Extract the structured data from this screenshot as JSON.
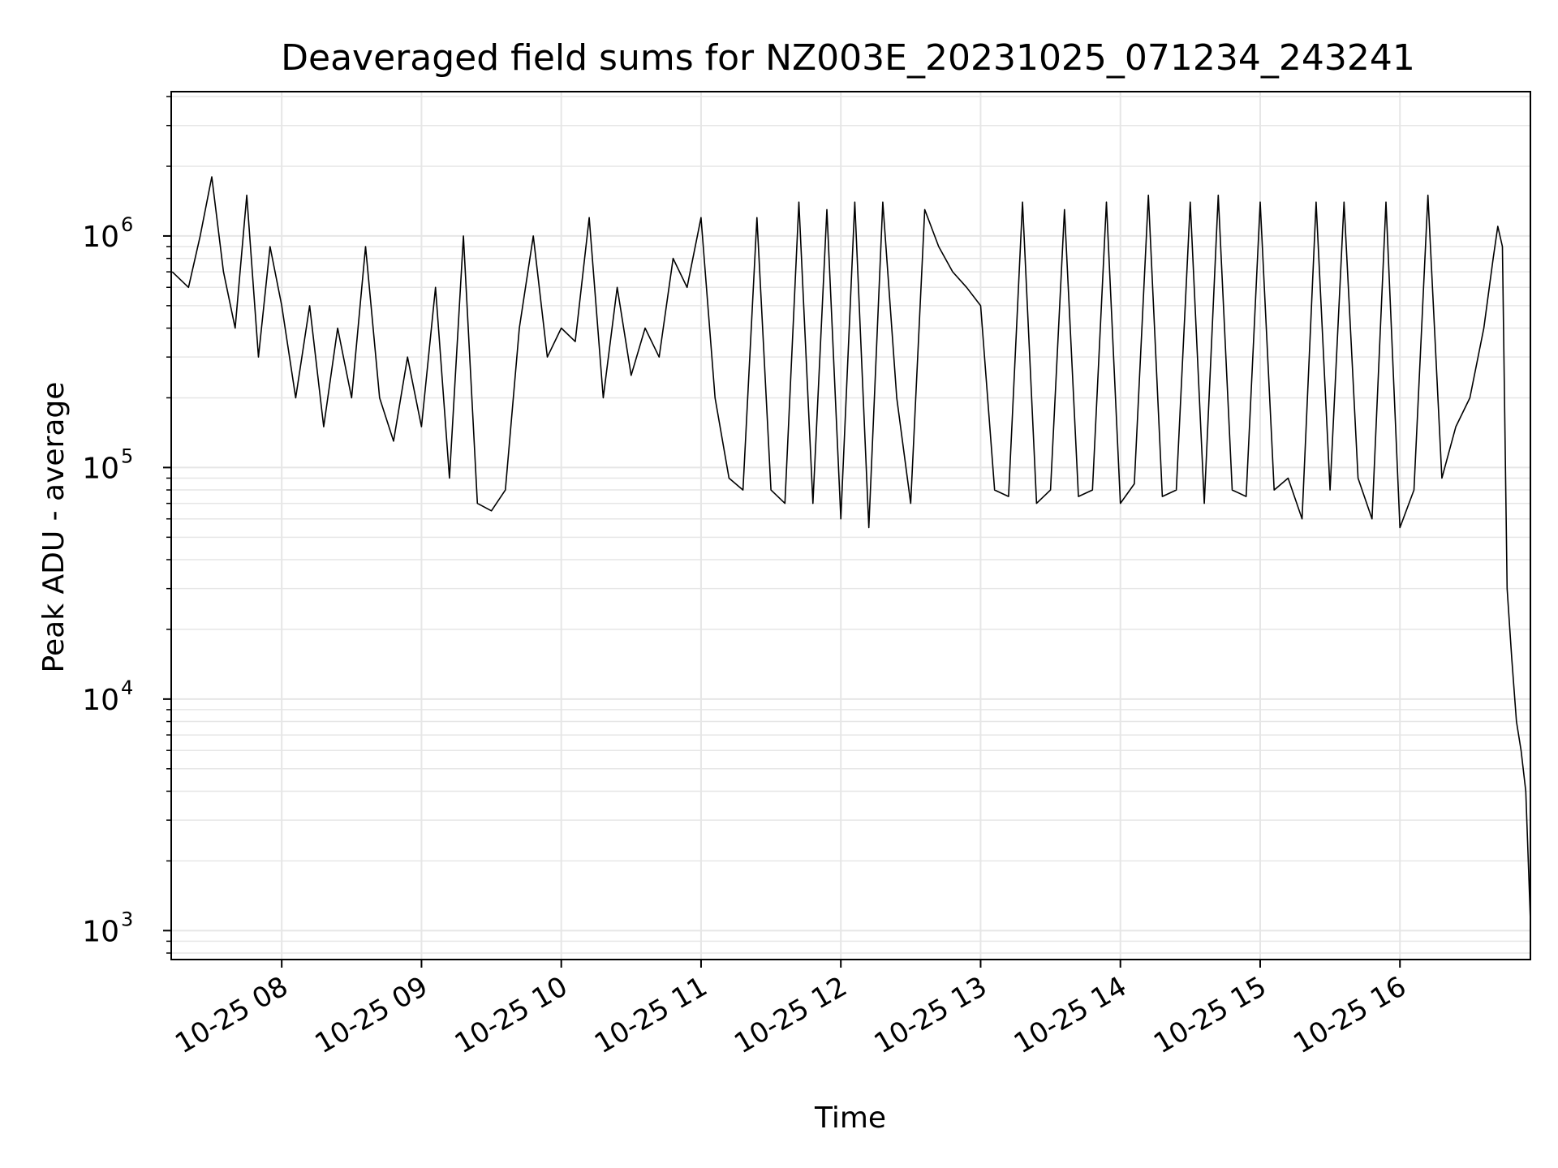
{
  "chart_data": {
    "type": "line",
    "title": "Deaveraged field sums for NZ003E_20231025_071234_243241",
    "xlabel": "Time",
    "ylabel": "Peak ADU - average",
    "yscale": "log",
    "ylim": [
      750,
      4200000
    ],
    "xlim": [
      "2023-10-25 07:12:34",
      "2023-10-25 16:56:00"
    ],
    "grid": true,
    "line_color": "#000000",
    "grid_color": "#e6e6e6",
    "x_ticks": [
      {
        "value": "2023-10-25 08:00",
        "label": "10-25 08"
      },
      {
        "value": "2023-10-25 09:00",
        "label": "10-25 09"
      },
      {
        "value": "2023-10-25 10:00",
        "label": "10-25 10"
      },
      {
        "value": "2023-10-25 11:00",
        "label": "10-25 11"
      },
      {
        "value": "2023-10-25 12:00",
        "label": "10-25 12"
      },
      {
        "value": "2023-10-25 13:00",
        "label": "10-25 13"
      },
      {
        "value": "2023-10-25 14:00",
        "label": "10-25 14"
      },
      {
        "value": "2023-10-25 15:00",
        "label": "10-25 15"
      },
      {
        "value": "2023-10-25 16:00",
        "label": "10-25 16"
      }
    ],
    "y_ticks": [
      {
        "value": 1000,
        "base": "10",
        "exp": "3"
      },
      {
        "value": 10000,
        "base": "10",
        "exp": "4"
      },
      {
        "value": 100000,
        "base": "10",
        "exp": "5"
      },
      {
        "value": 1000000,
        "base": "10",
        "exp": "6"
      }
    ],
    "x": [
      "2023-10-25 07:13",
      "2023-10-25 07:20",
      "2023-10-25 07:25",
      "2023-10-25 07:30",
      "2023-10-25 07:35",
      "2023-10-25 07:40",
      "2023-10-25 07:45",
      "2023-10-25 07:50",
      "2023-10-25 07:55",
      "2023-10-25 08:00",
      "2023-10-25 08:06",
      "2023-10-25 08:12",
      "2023-10-25 08:18",
      "2023-10-25 08:24",
      "2023-10-25 08:30",
      "2023-10-25 08:36",
      "2023-10-25 08:42",
      "2023-10-25 08:48",
      "2023-10-25 08:54",
      "2023-10-25 09:00",
      "2023-10-25 09:06",
      "2023-10-25 09:12",
      "2023-10-25 09:18",
      "2023-10-25 09:24",
      "2023-10-25 09:30",
      "2023-10-25 09:36",
      "2023-10-25 09:42",
      "2023-10-25 09:48",
      "2023-10-25 09:54",
      "2023-10-25 10:00",
      "2023-10-25 10:06",
      "2023-10-25 10:12",
      "2023-10-25 10:18",
      "2023-10-25 10:24",
      "2023-10-25 10:30",
      "2023-10-25 10:36",
      "2023-10-25 10:42",
      "2023-10-25 10:48",
      "2023-10-25 10:54",
      "2023-10-25 11:00",
      "2023-10-25 11:06",
      "2023-10-25 11:12",
      "2023-10-25 11:18",
      "2023-10-25 11:24",
      "2023-10-25 11:30",
      "2023-10-25 11:36",
      "2023-10-25 11:42",
      "2023-10-25 11:48",
      "2023-10-25 11:54",
      "2023-10-25 12:00",
      "2023-10-25 12:06",
      "2023-10-25 12:12",
      "2023-10-25 12:18",
      "2023-10-25 12:24",
      "2023-10-25 12:30",
      "2023-10-25 12:36",
      "2023-10-25 12:42",
      "2023-10-25 12:48",
      "2023-10-25 12:54",
      "2023-10-25 13:00",
      "2023-10-25 13:06",
      "2023-10-25 13:12",
      "2023-10-25 13:18",
      "2023-10-25 13:24",
      "2023-10-25 13:30",
      "2023-10-25 13:36",
      "2023-10-25 13:42",
      "2023-10-25 13:48",
      "2023-10-25 13:54",
      "2023-10-25 14:00",
      "2023-10-25 14:06",
      "2023-10-25 14:12",
      "2023-10-25 14:18",
      "2023-10-25 14:24",
      "2023-10-25 14:30",
      "2023-10-25 14:36",
      "2023-10-25 14:42",
      "2023-10-25 14:48",
      "2023-10-25 14:54",
      "2023-10-25 15:00",
      "2023-10-25 15:06",
      "2023-10-25 15:12",
      "2023-10-25 15:18",
      "2023-10-25 15:24",
      "2023-10-25 15:30",
      "2023-10-25 15:36",
      "2023-10-25 15:42",
      "2023-10-25 15:48",
      "2023-10-25 15:54",
      "2023-10-25 16:00",
      "2023-10-25 16:06",
      "2023-10-25 16:12",
      "2023-10-25 16:18",
      "2023-10-25 16:24",
      "2023-10-25 16:30",
      "2023-10-25 16:36",
      "2023-10-25 16:40",
      "2023-10-25 16:42",
      "2023-10-25 16:44",
      "2023-10-25 16:46",
      "2023-10-25 16:48",
      "2023-10-25 16:50",
      "2023-10-25 16:52",
      "2023-10-25 16:54",
      "2023-10-25 16:56"
    ],
    "y": [
      700000,
      600000,
      1000000,
      1800000,
      700000,
      400000,
      1500000,
      300000,
      900000,
      500000,
      200000,
      500000,
      150000,
      400000,
      200000,
      900000,
      200000,
      130000,
      300000,
      150000,
      600000,
      90000,
      1000000,
      70000,
      65000,
      80000,
      400000,
      1000000,
      300000,
      400000,
      350000,
      1200000,
      200000,
      600000,
      250000,
      400000,
      300000,
      800000,
      600000,
      1200000,
      200000,
      90000,
      80000,
      1200000,
      80000,
      70000,
      1400000,
      70000,
      1300000,
      60000,
      1400000,
      55000,
      1400000,
      200000,
      70000,
      1300000,
      900000,
      700000,
      600000,
      500000,
      80000,
      75000,
      1400000,
      70000,
      80000,
      1300000,
      75000,
      80000,
      1400000,
      70000,
      85000,
      1500000,
      75000,
      80000,
      1400000,
      70000,
      1500000,
      80000,
      75000,
      1400000,
      80000,
      90000,
      60000,
      1400000,
      80000,
      1400000,
      90000,
      60000,
      1400000,
      55000,
      80000,
      1500000,
      90000,
      150000,
      200000,
      400000,
      800000,
      1100000,
      900000,
      30000,
      15000,
      8000,
      6000,
      4000,
      1100
    ]
  }
}
